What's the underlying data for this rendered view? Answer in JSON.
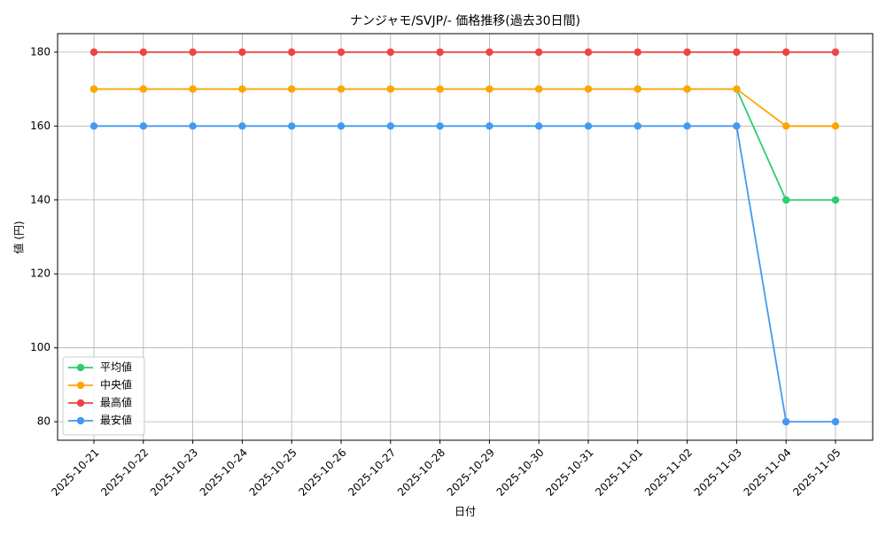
{
  "chart_data": {
    "type": "line",
    "title": "ナンジャモ/SVJP/- 価格推移(過去30日間)",
    "xlabel": "日付",
    "ylabel": "値 (円)",
    "categories": [
      "2025-10-21",
      "2025-10-22",
      "2025-10-23",
      "2025-10-24",
      "2025-10-25",
      "2025-10-26",
      "2025-10-27",
      "2025-10-28",
      "2025-10-29",
      "2025-10-30",
      "2025-10-31",
      "2025-11-01",
      "2025-11-02",
      "2025-11-03",
      "2025-11-04",
      "2025-11-05"
    ],
    "series": [
      {
        "name": "平均値",
        "color": "#2ecc71",
        "values": [
          170,
          170,
          170,
          170,
          170,
          170,
          170,
          170,
          170,
          170,
          170,
          170,
          170,
          170,
          140,
          140
        ]
      },
      {
        "name": "中央値",
        "color": "#ffa500",
        "values": [
          170,
          170,
          170,
          170,
          170,
          170,
          170,
          170,
          170,
          170,
          170,
          170,
          170,
          170,
          160,
          160
        ]
      },
      {
        "name": "最高値",
        "color": "#ef4444",
        "values": [
          180,
          180,
          180,
          180,
          180,
          180,
          180,
          180,
          180,
          180,
          180,
          180,
          180,
          180,
          180,
          180
        ]
      },
      {
        "name": "最安値",
        "color": "#4499f0",
        "values": [
          160,
          160,
          160,
          160,
          160,
          160,
          160,
          160,
          160,
          160,
          160,
          160,
          160,
          160,
          80,
          80
        ]
      }
    ],
    "ylim": [
      75,
      185
    ],
    "yticks": [
      80,
      100,
      120,
      140,
      160,
      180
    ],
    "grid": true,
    "legend": "lower left"
  }
}
